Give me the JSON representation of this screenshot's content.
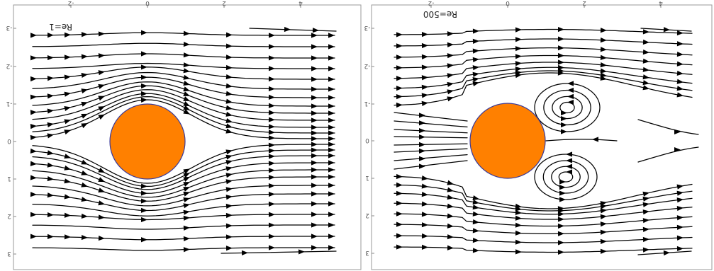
{
  "panels": [
    {
      "id": "left",
      "reynolds_label": "Re=1",
      "flow_regime": "attached",
      "x_tick_labels": [
        "-2",
        "0",
        "2",
        "4"
      ],
      "y_tick_labels": [
        "-3",
        "-2",
        "-1",
        "0",
        "1",
        "2",
        "3"
      ]
    },
    {
      "id": "right",
      "reynolds_label": "Re=500",
      "flow_regime": "wake-vortices",
      "x_tick_labels": [
        "-2",
        "0",
        "2",
        "4"
      ],
      "y_tick_labels": [
        "-3",
        "-2",
        "-1",
        "0",
        "1",
        "2",
        "3"
      ]
    }
  ],
  "colors": {
    "cylinder_fill": "#ff8000",
    "cylinder_edge": "#3b3b9a",
    "streamline": "#000000",
    "frame": "#9a9a9a"
  }
}
